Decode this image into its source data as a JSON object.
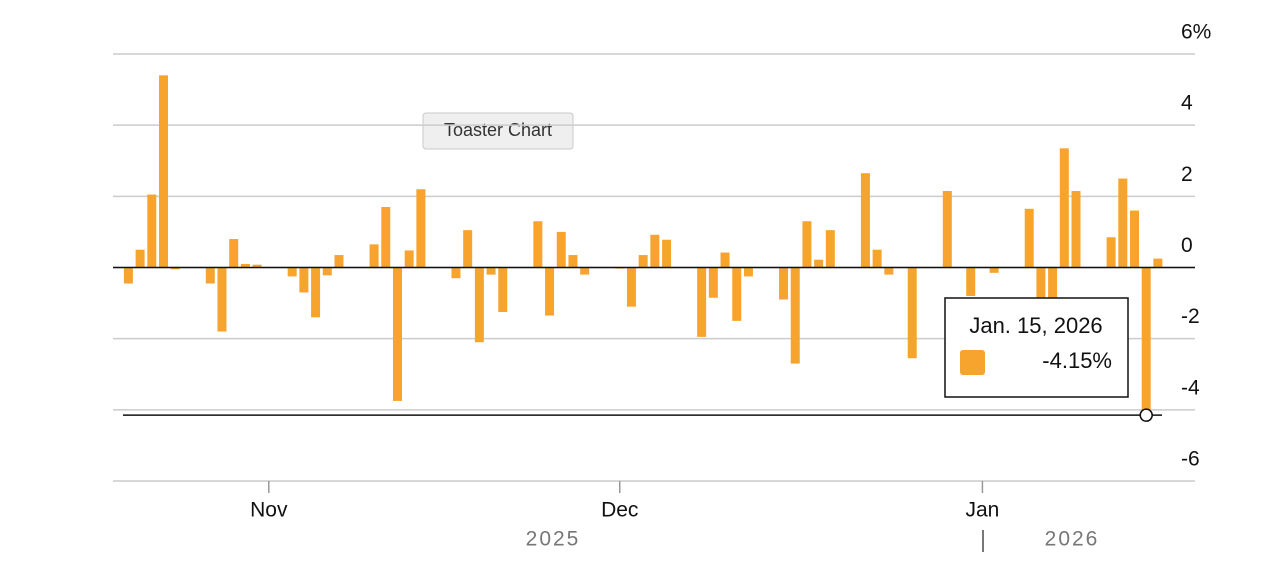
{
  "chart_data": {
    "type": "bar",
    "color": "#f7a42f",
    "x": [
      "2025-10-20",
      "2025-10-21",
      "2025-10-22",
      "2025-10-23",
      "2025-10-24",
      "2025-10-27",
      "2025-10-28",
      "2025-10-29",
      "2025-10-30",
      "2025-10-31",
      "2025-11-03",
      "2025-11-04",
      "2025-11-05",
      "2025-11-06",
      "2025-11-07",
      "2025-11-10",
      "2025-11-11",
      "2025-11-12",
      "2025-11-13",
      "2025-11-14",
      "2025-11-17",
      "2025-11-18",
      "2025-11-19",
      "2025-11-20",
      "2025-11-21",
      "2025-11-24",
      "2025-11-25",
      "2025-11-26",
      "2025-11-27",
      "2025-11-28",
      "2025-12-01",
      "2025-12-02",
      "2025-12-03",
      "2025-12-04",
      "2025-12-05",
      "2025-12-08",
      "2025-12-09",
      "2025-12-10",
      "2025-12-11",
      "2025-12-12",
      "2025-12-15",
      "2025-12-16",
      "2025-12-17",
      "2025-12-18",
      "2025-12-19",
      "2025-12-22",
      "2025-12-23",
      "2025-12-24",
      "2025-12-26",
      "2025-12-29",
      "2025-12-31",
      "2026-01-02",
      "2026-01-05",
      "2026-01-06",
      "2026-01-07",
      "2026-01-08",
      "2026-01-09",
      "2026-01-12",
      "2026-01-13",
      "2026-01-14",
      "2026-01-15",
      "2026-01-16"
    ],
    "values": [
      -0.45,
      0.5,
      2.05,
      5.4,
      -0.05,
      -0.45,
      -1.8,
      0.8,
      0.1,
      0.08,
      -0.25,
      -0.7,
      -1.4,
      -0.22,
      0.35,
      0.65,
      1.7,
      -3.75,
      0.48,
      2.2,
      -0.3,
      1.05,
      -2.1,
      -0.2,
      -1.25,
      1.3,
      -1.35,
      1.0,
      0.35,
      -0.2,
      -0.03,
      -1.1,
      0.35,
      0.92,
      0.78,
      -1.95,
      -0.85,
      0.42,
      -1.5,
      -0.25,
      -0.9,
      -2.7,
      1.3,
      0.22,
      1.05,
      2.65,
      0.5,
      -0.2,
      -2.55,
      2.15,
      -0.8,
      -0.15,
      1.65,
      -0.85,
      -0.85,
      3.35,
      2.15,
      0.85,
      2.5,
      1.6,
      -4.15,
      0.25
    ],
    "xlim": [
      "2025-10-18",
      "2026-01-19"
    ],
    "xticks": [
      {
        "value": "2025-11-01",
        "label": "Nov"
      },
      {
        "value": "2025-12-01",
        "label": "Dec"
      },
      {
        "value": "2026-01-01",
        "label": "Jan"
      }
    ],
    "years": [
      "2025",
      "2026"
    ],
    "ylim": [
      -6,
      6
    ],
    "yticks": [
      -6,
      -4,
      -2,
      0,
      2,
      4,
      {
        "value": 6,
        "label": "6%"
      }
    ],
    "grid": true,
    "badge": "Toaster Chart",
    "tooltip": {
      "title": "Jan. 15, 2026",
      "label": "-4.15%"
    }
  }
}
